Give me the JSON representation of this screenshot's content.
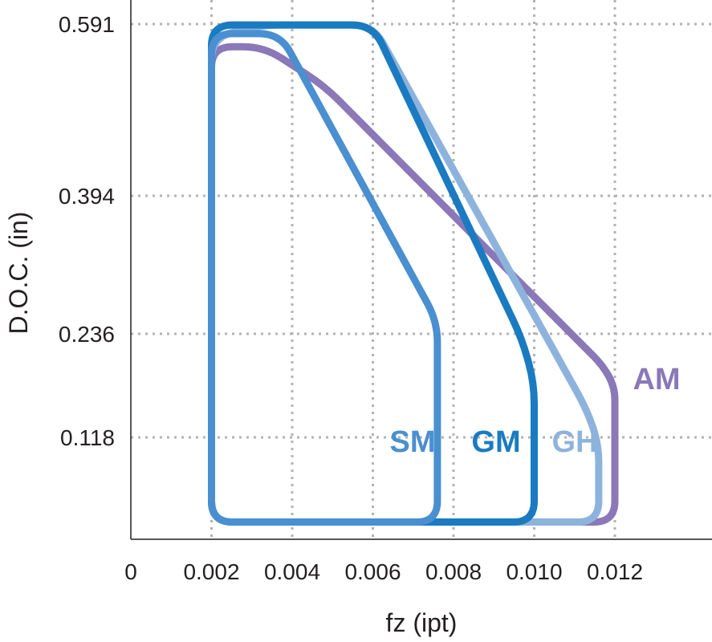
{
  "chart_data": {
    "type": "line",
    "title": "",
    "xlabel": "fz (ipt)",
    "ylabel": "D.O.C. (in)",
    "xlim": [
      0,
      0.014
    ],
    "ylim": [
      0,
      0.6
    ],
    "x_ticks": [
      0,
      0.002,
      0.004,
      0.006,
      0.008,
      0.01,
      0.012
    ],
    "x_tick_labels": [
      "0",
      "0.002",
      "0.004",
      "0.006",
      "0.008",
      "0.010",
      "0.012"
    ],
    "y_ticks": [
      0.118,
      0.236,
      0.394,
      0.591
    ],
    "y_tick_labels": [
      "0.118",
      "0.236",
      "0.394",
      "0.591"
    ],
    "grid": true,
    "series": [
      {
        "name": "AM",
        "color": "#8a78b8",
        "points": [
          [
            0.002,
            0.02
          ],
          [
            0.002,
            0.565
          ],
          [
            0.0033,
            0.565
          ],
          [
            0.0048,
            0.52
          ],
          [
            0.0117,
            0.2
          ],
          [
            0.012,
            0.175
          ],
          [
            0.012,
            0.02
          ]
        ]
      },
      {
        "name": "GH",
        "color": "#8db3dd",
        "points": [
          [
            0.002,
            0.02
          ],
          [
            0.002,
            0.575
          ],
          [
            0.0032,
            0.59
          ],
          [
            0.006,
            0.59
          ],
          [
            0.0113,
            0.15
          ],
          [
            0.0116,
            0.11
          ],
          [
            0.0116,
            0.02
          ]
        ]
      },
      {
        "name": "GM",
        "color": "#1a7bc1",
        "points": [
          [
            0.002,
            0.02
          ],
          [
            0.002,
            0.59
          ],
          [
            0.006,
            0.59
          ],
          [
            0.0097,
            0.23
          ],
          [
            0.01,
            0.18
          ],
          [
            0.01,
            0.02
          ]
        ]
      },
      {
        "name": "SM",
        "color": "#4a8fd0",
        "points": [
          [
            0.002,
            0.02
          ],
          [
            0.002,
            0.58
          ],
          [
            0.0037,
            0.58
          ],
          [
            0.0076,
            0.25
          ],
          [
            0.0076,
            0.2
          ],
          [
            0.0076,
            0.02
          ]
        ]
      }
    ]
  }
}
